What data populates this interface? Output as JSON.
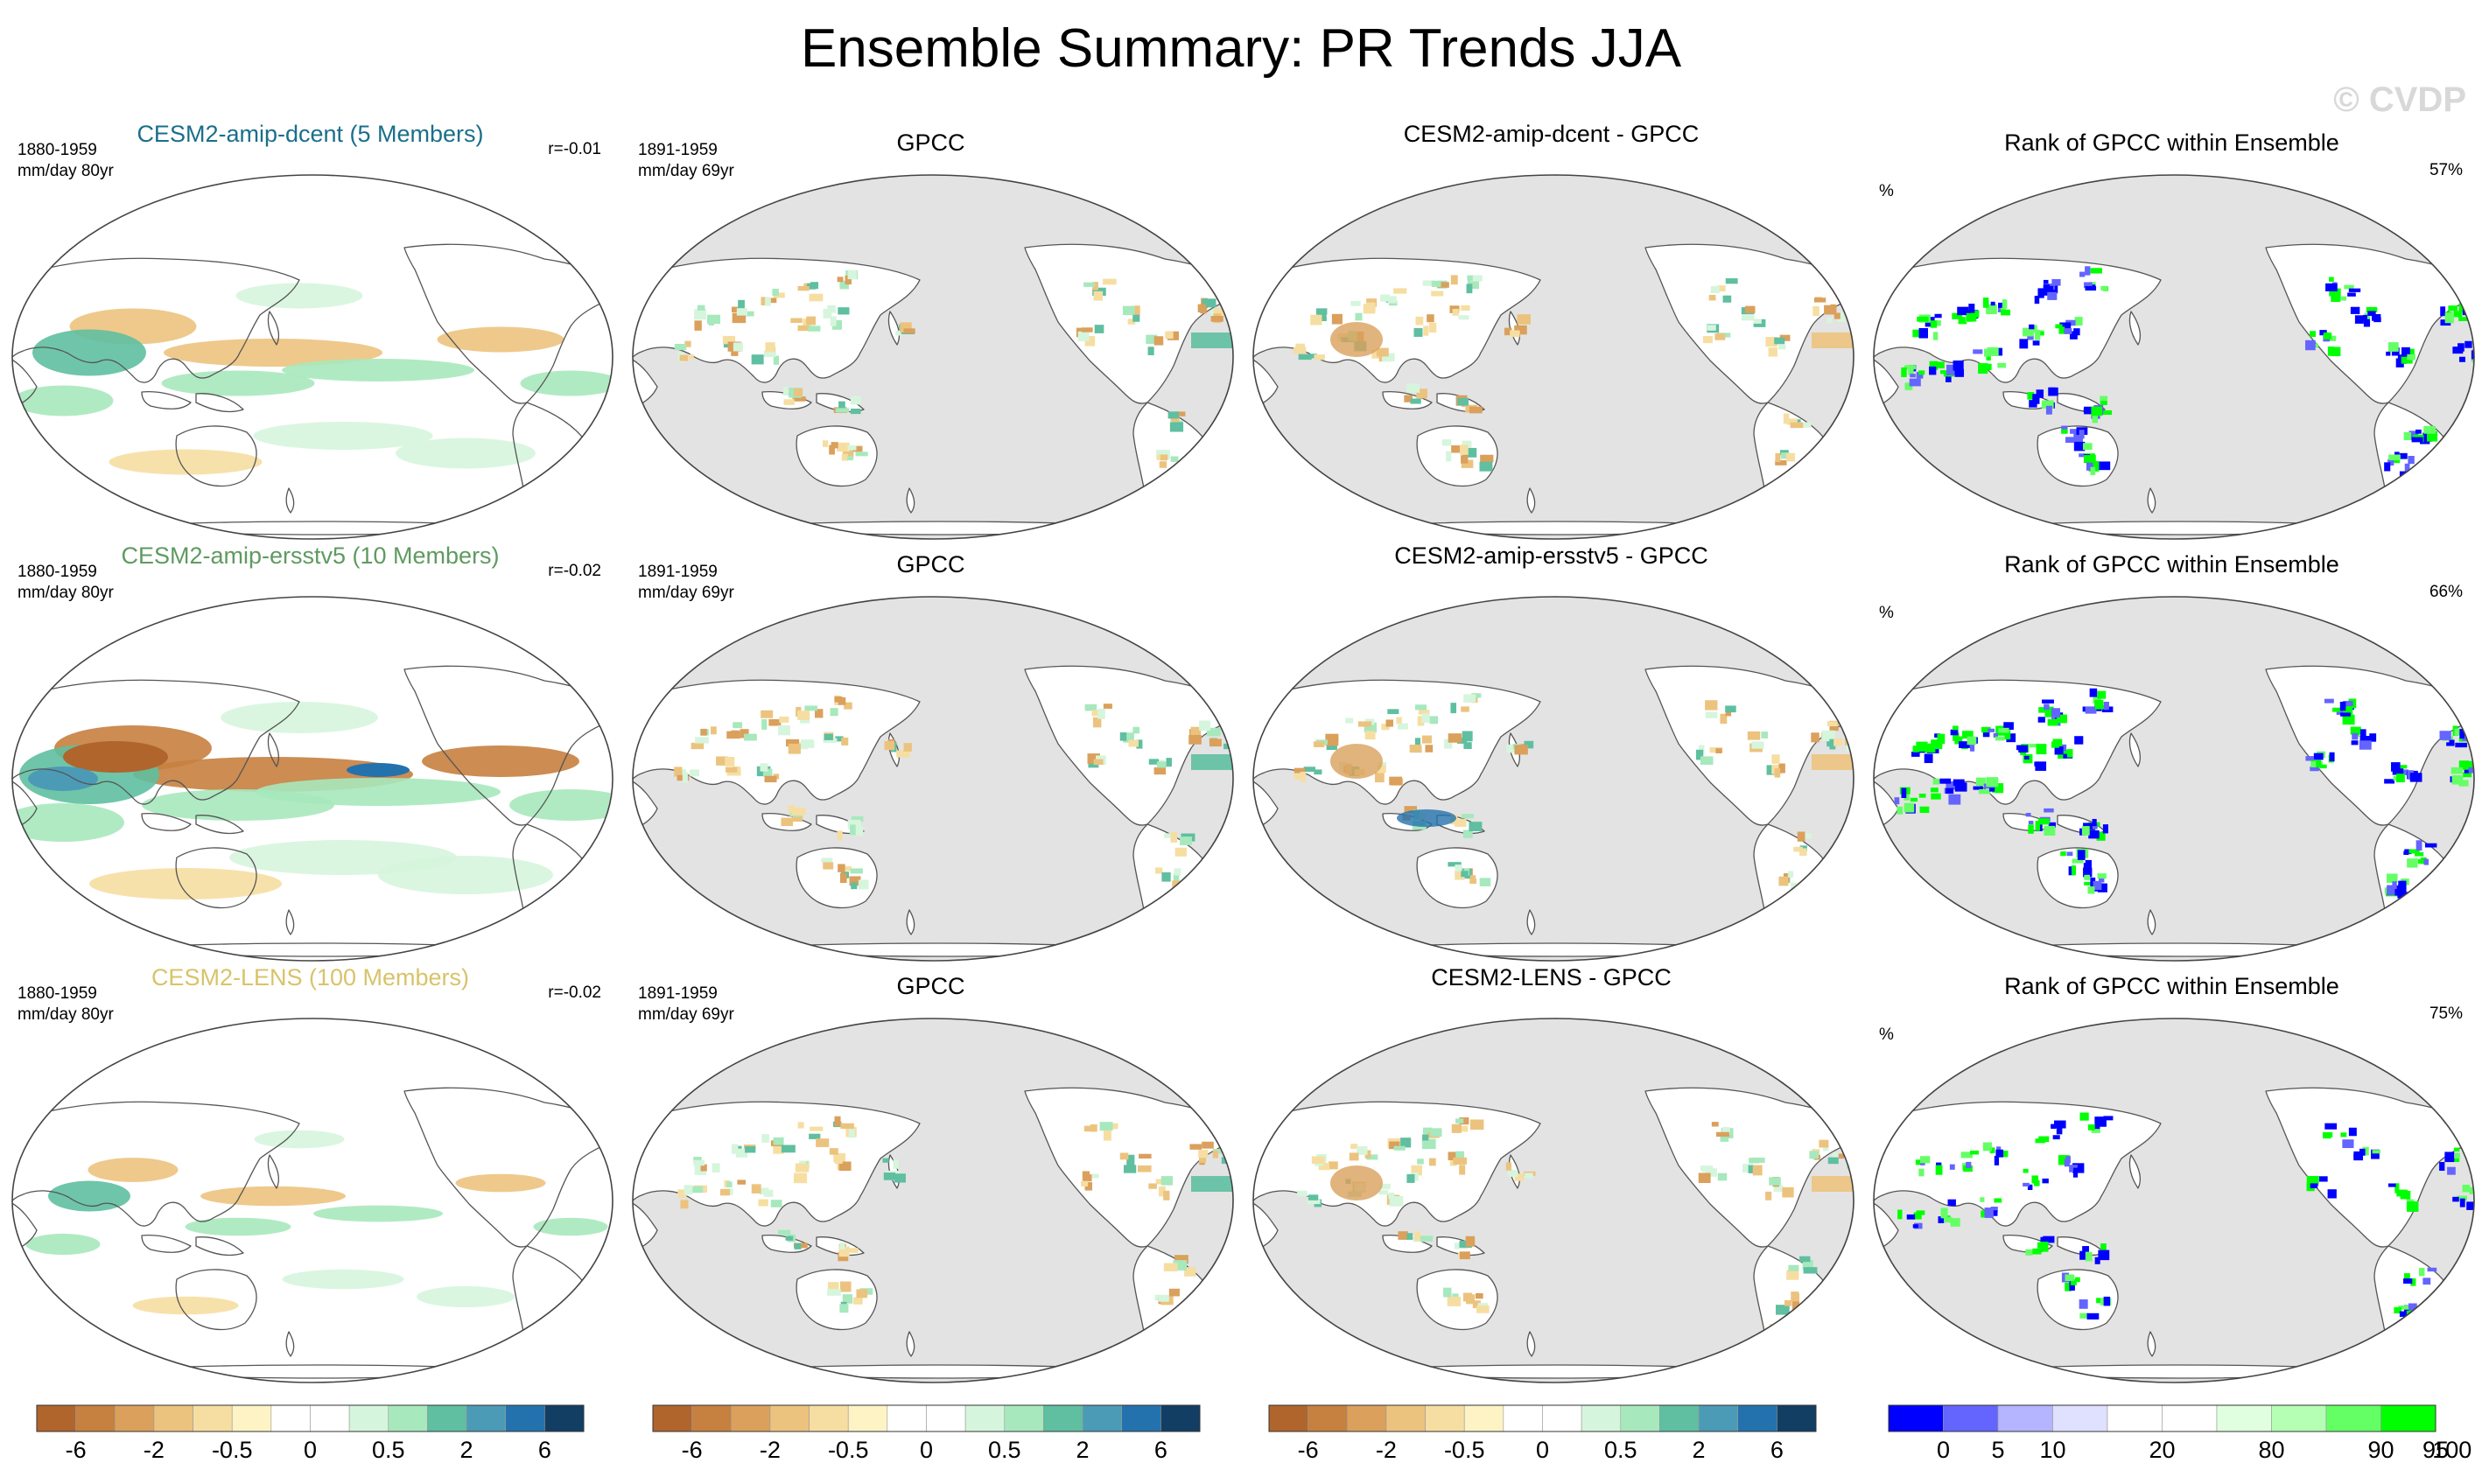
{
  "title": "Ensemble Summary: PR Trends JJA",
  "watermark": "© CVDP",
  "rows": [
    {
      "ensemble_title": "CESM2-amip-dcent (5 Members)",
      "ensemble_color": "#1a6f8a",
      "model_period": "1880-1959",
      "units_model": "mm/day 80yr",
      "corr": "r=-0.01",
      "obs_title": "GPCC",
      "obs_period": "1891-1959",
      "units_obs": "mm/day 69yr",
      "diff_title": "CESM2-amip-dcent - GPCC",
      "rank_title": "Rank of GPCC within Ensemble",
      "rank_unit": "%",
      "rank_pct": "57%"
    },
    {
      "ensemble_title": "CESM2-amip-ersstv5 (10 Members)",
      "ensemble_color": "#5f9a60",
      "model_period": "1880-1959",
      "units_model": "mm/day 80yr",
      "corr": "r=-0.02",
      "obs_title": "GPCC",
      "obs_period": "1891-1959",
      "units_obs": "mm/day 69yr",
      "diff_title": "CESM2-amip-ersstv5 - GPCC",
      "rank_title": "Rank of GPCC within Ensemble",
      "rank_unit": "%",
      "rank_pct": "66%"
    },
    {
      "ensemble_title": "CESM2-LENS (100 Members)",
      "ensemble_color": "#d8c36a",
      "model_period": "1880-1959",
      "units_model": "mm/day 80yr",
      "corr": "r=-0.02",
      "obs_title": "GPCC",
      "obs_period": "1891-1959",
      "units_obs": "mm/day 69yr",
      "diff_title": "CESM2-LENS - GPCC",
      "rank_title": "Rank of GPCC within Ensemble",
      "rank_unit": "%",
      "rank_pct": "75%"
    }
  ],
  "colorbars": {
    "trend_colors": [
      "#b0652d",
      "#c6803f",
      "#daa05c",
      "#ecc37e",
      "#f6dea2",
      "#fdf3c5",
      "#ffffff",
      "#ffffff",
      "#d6f5dd",
      "#a7e8bd",
      "#5fbfa0",
      "#4c9bb6",
      "#2372ad",
      "#123e63"
    ],
    "trend_labels": [
      "-6",
      "-2",
      "-0.5",
      "0",
      "0.5",
      "2",
      "6"
    ],
    "rank_colors": [
      "#0000ff",
      "#6464ff",
      "#b4b4ff",
      "#e0e0ff",
      "#ffffff",
      "#ffffff",
      "#e0ffe0",
      "#b4ffb4",
      "#64ff64",
      "#00ff00"
    ],
    "rank_labels": [
      "0",
      "5",
      "10",
      "20",
      "80",
      "90",
      "95",
      "100"
    ]
  },
  "map_colors": {
    "ocean_gray": "#e3e3e3",
    "land_white": "#ffffff",
    "coast": "#555555"
  }
}
